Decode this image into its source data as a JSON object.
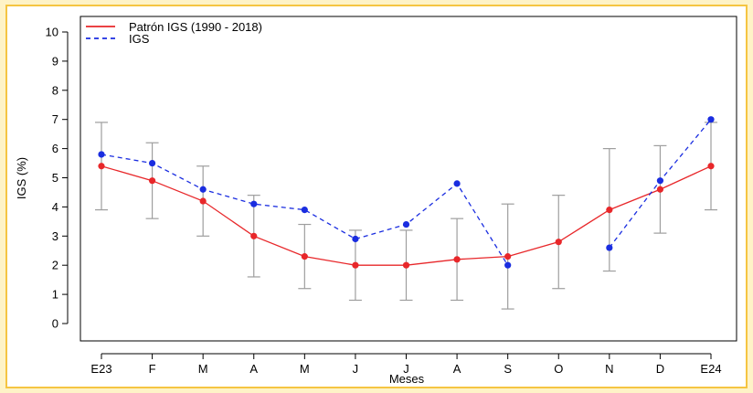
{
  "chart_data": {
    "type": "line",
    "categories": [
      "E23",
      "F",
      "M",
      "A",
      "M",
      "J",
      "J",
      "A",
      "S",
      "O",
      "N",
      "D",
      "E24"
    ],
    "xlabel": "Meses",
    "ylabel": "IGS (%)",
    "ylim": [
      0,
      10
    ],
    "yticks": [
      0,
      1,
      2,
      3,
      4,
      5,
      6,
      7,
      8,
      9,
      10
    ],
    "grid": false,
    "legend_position": "top-left",
    "series": [
      {
        "name": "Patrón IGS (1990 - 2018)",
        "color": "#e8272a",
        "line_style": "solid",
        "values": [
          5.4,
          4.9,
          4.2,
          3.0,
          2.3,
          2.0,
          2.0,
          2.2,
          2.3,
          2.8,
          3.9,
          4.6,
          5.4
        ],
        "error_low": [
          3.9,
          3.6,
          3.0,
          1.6,
          1.2,
          0.8,
          0.8,
          0.8,
          0.5,
          1.2,
          1.8,
          3.1,
          3.9
        ],
        "error_high": [
          6.9,
          6.2,
          5.4,
          4.4,
          3.4,
          3.2,
          3.2,
          3.6,
          4.1,
          4.4,
          6.0,
          6.1,
          6.9
        ],
        "error_color": "#9e9e9e"
      },
      {
        "name": "IGS",
        "color": "#1a2de0",
        "line_style": "dashed",
        "values": [
          5.8,
          5.5,
          4.6,
          4.1,
          3.9,
          2.9,
          3.4,
          4.8,
          2.0,
          null,
          2.6,
          4.9,
          7.0
        ]
      }
    ]
  }
}
